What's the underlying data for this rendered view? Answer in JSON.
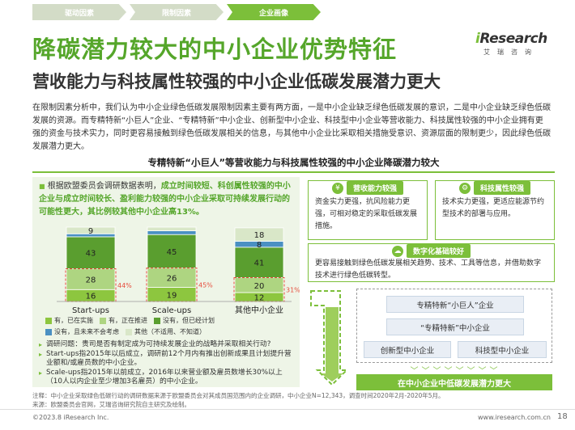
{
  "nav": {
    "tabs": [
      {
        "label": "驱动因素",
        "active": false
      },
      {
        "label": "限制因素",
        "active": false
      },
      {
        "label": "企业画像",
        "active": true
      }
    ]
  },
  "logo": {
    "brand_i": "i",
    "brand_rest": "Research",
    "sub": "艾瑞咨询"
  },
  "title": "降碳潜力较大的中小企业优势特征",
  "subtitle": "营收能力与科技属性较强的中小企业低碳发展潜力更大",
  "intro": "在限制因素分析中，我们认为中小企业绿色低碳发展限制因素主要有两方面，一是中小企业缺乏绿色低碳发展的意识，二是中小企业缺乏绿色低碳发展的资源。而专精特新“小巨人”企业、“专精特新”中小企业、创新型中小企业、科技型中小企业等营收能力、科技属性较强的中小企业拥有更强的资金与技术实力，同时更容易接触到绿色低碳发展相关的信息，与其他中小企业比采取相关措施受意识、资源层面的限制更少，因此绿色低碳发展潜力更大。",
  "section_title": "专精特新“小巨人”等营收能力与科技属性较强的中小企业降碳潜力较大",
  "lead": {
    "normal": "根据欧盟委员会调研数据表明，",
    "highlight": "成立时间较短、科创属性较强的中小企业与成立时间较长、盈利能力较强的中小企业采取可持续发展行动的可能性更大，其比例较其他中小企业高13%。"
  },
  "chart_data": {
    "type": "bar",
    "stacked": true,
    "categories": [
      "Start-ups",
      "Scale-ups",
      "其他中小企业"
    ],
    "series": [
      {
        "name": "有，已在实施",
        "color": "#8dc63f",
        "values": [
          16,
          19,
          12
        ]
      },
      {
        "name": "有，正在推进",
        "color": "#aed581",
        "values": [
          28,
          26,
          20
        ]
      },
      {
        "name": "没有，但已经计划",
        "color": "#5a9e2f",
        "values": [
          43,
          45,
          41
        ]
      },
      {
        "name": "没有，且未来不会考虑",
        "color": "#4a90c2",
        "values": [
          4,
          5,
          8
        ]
      },
      {
        "name": "其他（不适用、不知道）",
        "color": "#d9e7c8",
        "values": [
          9,
          5,
          18
        ]
      }
    ],
    "annotations": [
      "44%",
      "45%",
      "31%"
    ],
    "ylim": [
      0,
      100
    ]
  },
  "notes": [
    "调研问题：贵司是否有制定成为可持续发展企业的战略并采取相关行动?",
    "Start-ups指2015年以后成立，调研前12个月内有推出创新成果且计划提升营业额和/或雇员数的中小企业。",
    "Scale-ups指2015年以前成立，2016年以来营业额及雇员数增长30%以上（10人以内企业至少增加3名雇员）的中小企业。"
  ],
  "right": {
    "card1": {
      "label": "营收能力较强",
      "text": "资金实力更强，抗风险能力更强，可相对稳定的采取低碳发展措施。",
      "icon": "¥"
    },
    "card2": {
      "label": "科技属性较强",
      "text": "技术实力更强，更适应能源节约型技术的部署与应用。",
      "icon": "⚙"
    },
    "card3": {
      "label": "数字化基础较好",
      "text": "更容易接触到绿色低碳发展相关趋势、技术、工具等信息，并借助数字技术进行绿色低碳转型。",
      "icon": "☁"
    },
    "tags": [
      "专精特新“小巨人”企业",
      "“专精特新”中小企业",
      "创新型中小企业",
      "科技型中小企业"
    ],
    "bottom": "在中小企业中低碳发展潜力更大",
    "chevrons": "﹀﹀﹀﹀﹀﹀﹀﹀"
  },
  "footnote": "注释：中小企业采取绿色低碳行动的调研数据来源于欧盟委员会对其成员国范围内的企业调研，中小企业N=12,343，调查时间2020年2月-2020年5月。\n来源：欧盟委员会官网，艾瑞咨询研究院自主研究及绘制。",
  "copyright": "©2023.8 iResearch Inc.",
  "site": "www.iresearch.com.cn",
  "page": "18"
}
